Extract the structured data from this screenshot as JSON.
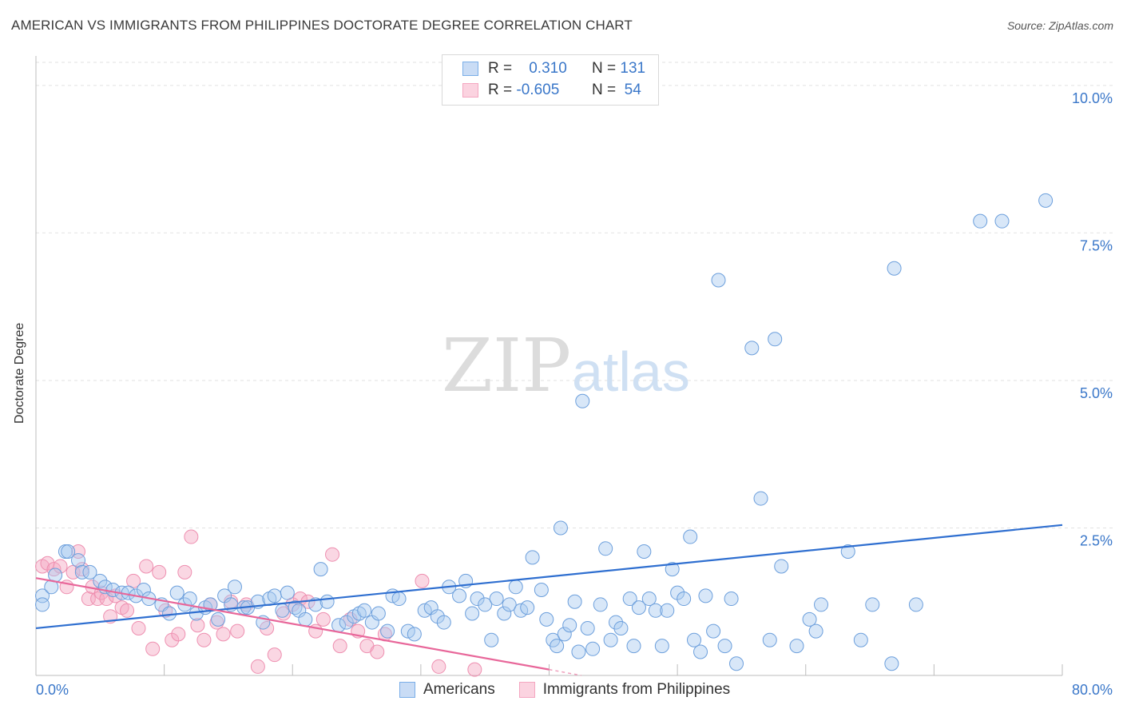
{
  "title": "AMERICAN VS IMMIGRANTS FROM PHILIPPINES DOCTORATE DEGREE CORRELATION CHART",
  "source": "Source: ZipAtlas.com",
  "watermark": {
    "zip": "ZIP",
    "atlas": "atlas"
  },
  "legend": {
    "r_label": "R =",
    "n_label": "N =",
    "americans": {
      "r": "0.310",
      "n": "131",
      "color": "#7aaee8"
    },
    "philippines": {
      "r": "-0.605",
      "n": "54",
      "color": "#f4a6c0"
    }
  },
  "bottom_legend": {
    "americans": "Americans",
    "philippines": "Immigrants from Philippines"
  },
  "chart_data": {
    "type": "scatter",
    "title": "AMERICAN VS IMMIGRANTS FROM PHILIPPINES DOCTORATE DEGREE CORRELATION CHART",
    "xlabel": "",
    "ylabel": "Doctorate Degree",
    "xlim": [
      0,
      80
    ],
    "ylim": [
      0,
      10.5
    ],
    "x_tick_labels": [
      "0.0%",
      "80.0%"
    ],
    "y_tick_labels": [
      "2.5%",
      "5.0%",
      "7.5%",
      "10.0%"
    ],
    "y_ticks": [
      2.5,
      5.0,
      7.5,
      10.0
    ],
    "series": [
      {
        "name": "Americans",
        "color": "#7aaee8",
        "trend": {
          "x": [
            0,
            80
          ],
          "y": [
            0.8,
            2.55
          ]
        },
        "points": [
          [
            0.5,
            1.35
          ],
          [
            0.5,
            1.2
          ],
          [
            1.2,
            1.5
          ],
          [
            1.5,
            1.7
          ],
          [
            2.3,
            2.1
          ],
          [
            2.5,
            2.1
          ],
          [
            3.3,
            1.95
          ],
          [
            3.6,
            1.75
          ],
          [
            4.2,
            1.75
          ],
          [
            5,
            1.6
          ],
          [
            5.4,
            1.5
          ],
          [
            6,
            1.45
          ],
          [
            6.7,
            1.4
          ],
          [
            7.2,
            1.4
          ],
          [
            7.8,
            1.35
          ],
          [
            8.4,
            1.45
          ],
          [
            8.8,
            1.3
          ],
          [
            9.8,
            1.2
          ],
          [
            10.4,
            1.05
          ],
          [
            11,
            1.4
          ],
          [
            11.6,
            1.2
          ],
          [
            12,
            1.3
          ],
          [
            12.5,
            1.05
          ],
          [
            13.2,
            1.15
          ],
          [
            13.6,
            1.2
          ],
          [
            14.2,
            0.95
          ],
          [
            14.7,
            1.35
          ],
          [
            15.2,
            1.2
          ],
          [
            15.5,
            1.5
          ],
          [
            16.2,
            1.15
          ],
          [
            16.5,
            1.15
          ],
          [
            17.3,
            1.25
          ],
          [
            17.7,
            0.9
          ],
          [
            18.2,
            1.3
          ],
          [
            18.6,
            1.35
          ],
          [
            19.2,
            1.1
          ],
          [
            19.6,
            1.4
          ],
          [
            20.2,
            1.15
          ],
          [
            20.5,
            1.1
          ],
          [
            21,
            0.95
          ],
          [
            21.8,
            1.2
          ],
          [
            22.2,
            1.8
          ],
          [
            22.7,
            1.25
          ],
          [
            23.6,
            0.85
          ],
          [
            24.2,
            0.9
          ],
          [
            24.8,
            1.0
          ],
          [
            25.2,
            1.05
          ],
          [
            25.6,
            1.1
          ],
          [
            26.2,
            0.9
          ],
          [
            26.7,
            1.05
          ],
          [
            27.4,
            0.75
          ],
          [
            27.8,
            1.35
          ],
          [
            28.3,
            1.3
          ],
          [
            29,
            0.75
          ],
          [
            29.5,
            0.7
          ],
          [
            30.3,
            1.1
          ],
          [
            30.8,
            1.15
          ],
          [
            31.3,
            1.0
          ],
          [
            31.8,
            0.9
          ],
          [
            32.2,
            1.5
          ],
          [
            33,
            1.35
          ],
          [
            33.5,
            1.6
          ],
          [
            34,
            1.05
          ],
          [
            34.4,
            1.3
          ],
          [
            35,
            1.2
          ],
          [
            35.5,
            0.6
          ],
          [
            35.9,
            1.3
          ],
          [
            36.5,
            1.05
          ],
          [
            36.9,
            1.2
          ],
          [
            37.4,
            1.5
          ],
          [
            37.8,
            1.1
          ],
          [
            38.3,
            1.15
          ],
          [
            38.7,
            2.0
          ],
          [
            39.4,
            1.45
          ],
          [
            39.8,
            0.95
          ],
          [
            40.3,
            0.6
          ],
          [
            40.6,
            0.5
          ],
          [
            40.9,
            2.5
          ],
          [
            41.2,
            0.7
          ],
          [
            41.6,
            0.85
          ],
          [
            42,
            1.25
          ],
          [
            42.3,
            0.4
          ],
          [
            42.6,
            4.65
          ],
          [
            43,
            0.8
          ],
          [
            43.4,
            0.45
          ],
          [
            44,
            1.2
          ],
          [
            44.4,
            2.15
          ],
          [
            44.8,
            0.6
          ],
          [
            45.2,
            0.9
          ],
          [
            45.6,
            0.8
          ],
          [
            46.3,
            1.3
          ],
          [
            46.6,
            0.5
          ],
          [
            47,
            1.15
          ],
          [
            47.4,
            2.1
          ],
          [
            47.8,
            1.3
          ],
          [
            48.3,
            1.1
          ],
          [
            48.8,
            0.5
          ],
          [
            49.2,
            1.1
          ],
          [
            49.6,
            1.8
          ],
          [
            50,
            1.4
          ],
          [
            50.5,
            1.3
          ],
          [
            51,
            2.35
          ],
          [
            51.3,
            0.6
          ],
          [
            51.8,
            0.4
          ],
          [
            52.2,
            1.35
          ],
          [
            52.8,
            0.75
          ],
          [
            53.2,
            6.7
          ],
          [
            53.7,
            0.5
          ],
          [
            54.2,
            1.3
          ],
          [
            54.6,
            0.2
          ],
          [
            55.8,
            5.55
          ],
          [
            56.5,
            3.0
          ],
          [
            57.2,
            0.6
          ],
          [
            57.6,
            5.7
          ],
          [
            58.1,
            1.85
          ],
          [
            59.3,
            0.5
          ],
          [
            60.3,
            0.95
          ],
          [
            60.8,
            0.75
          ],
          [
            61.2,
            1.2
          ],
          [
            63.3,
            2.1
          ],
          [
            64.3,
            0.6
          ],
          [
            65.2,
            1.2
          ],
          [
            66.7,
            0.2
          ],
          [
            66.9,
            6.9
          ],
          [
            68.6,
            1.2
          ],
          [
            73.6,
            7.7
          ],
          [
            75.3,
            7.7
          ],
          [
            78.7,
            8.05
          ]
        ]
      },
      {
        "name": "Immigrants from Philippines",
        "color": "#f4a6c0",
        "trend": {
          "x": [
            0,
            40
          ],
          "y": [
            1.65,
            0.1
          ]
        },
        "trend_dashed": {
          "x": [
            40,
            42.5
          ],
          "y": [
            0.1,
            0.0
          ]
        },
        "points": [
          [
            0.5,
            1.85
          ],
          [
            0.9,
            1.9
          ],
          [
            1.4,
            1.8
          ],
          [
            1.9,
            1.85
          ],
          [
            2.4,
            1.5
          ],
          [
            2.9,
            1.75
          ],
          [
            3.3,
            2.1
          ],
          [
            3.6,
            1.8
          ],
          [
            4.1,
            1.3
          ],
          [
            4.4,
            1.5
          ],
          [
            4.8,
            1.3
          ],
          [
            5.1,
            1.4
          ],
          [
            5.5,
            1.3
          ],
          [
            5.8,
            1.0
          ],
          [
            6.2,
            1.35
          ],
          [
            6.7,
            1.15
          ],
          [
            7.1,
            1.1
          ],
          [
            7.6,
            1.6
          ],
          [
            8,
            0.8
          ],
          [
            8.6,
            1.85
          ],
          [
            9.1,
            0.45
          ],
          [
            9.6,
            1.75
          ],
          [
            10.1,
            1.1
          ],
          [
            10.6,
            0.6
          ],
          [
            11.1,
            0.7
          ],
          [
            11.6,
            1.75
          ],
          [
            12.1,
            2.35
          ],
          [
            12.6,
            0.85
          ],
          [
            13.1,
            0.6
          ],
          [
            13.6,
            1.2
          ],
          [
            14.1,
            0.9
          ],
          [
            14.6,
            0.7
          ],
          [
            15.2,
            1.25
          ],
          [
            15.7,
            0.75
          ],
          [
            16.4,
            1.2
          ],
          [
            17.3,
            0.15
          ],
          [
            18,
            0.8
          ],
          [
            18.6,
            0.35
          ],
          [
            19.3,
            1.05
          ],
          [
            20,
            1.2
          ],
          [
            20.6,
            1.3
          ],
          [
            21.2,
            1.25
          ],
          [
            21.8,
            0.75
          ],
          [
            22.4,
            0.95
          ],
          [
            23.1,
            2.05
          ],
          [
            23.7,
            0.5
          ],
          [
            24.5,
            0.95
          ],
          [
            25.1,
            0.75
          ],
          [
            25.8,
            0.5
          ],
          [
            26.6,
            0.4
          ],
          [
            27.2,
            0.7
          ],
          [
            30.1,
            1.6
          ],
          [
            31.4,
            0.15
          ],
          [
            34.2,
            0.1
          ]
        ]
      }
    ]
  }
}
